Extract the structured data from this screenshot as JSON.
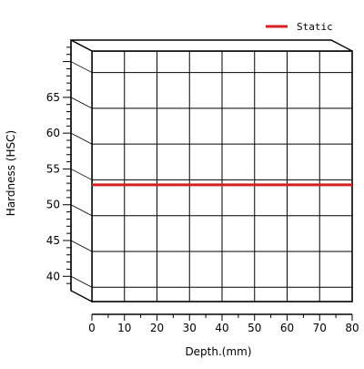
{
  "chart_data": {
    "type": "line",
    "title": "",
    "xlabel": "Depth.(mm)",
    "ylabel": "Hardness (HSC)",
    "xlim": [
      0,
      80
    ],
    "ylim": [
      38,
      73
    ],
    "xticks": [
      0,
      10,
      20,
      30,
      40,
      50,
      60,
      70,
      80
    ],
    "x_tick_labels": [
      "0",
      "10",
      "20",
      "30",
      "40",
      "50",
      "60",
      "70",
      "80"
    ],
    "yticks": [
      40,
      45,
      50,
      55,
      60,
      65
    ],
    "y_tick_labels": [
      "40",
      "45",
      "50",
      "55",
      "60",
      "65"
    ],
    "grid": true,
    "style": "3d-box",
    "legend_position": "top-right",
    "series": [
      {
        "name": "Static",
        "color": "#d42020",
        "x": [
          0,
          80
        ],
        "y": [
          54.3,
          54.3
        ]
      }
    ]
  }
}
